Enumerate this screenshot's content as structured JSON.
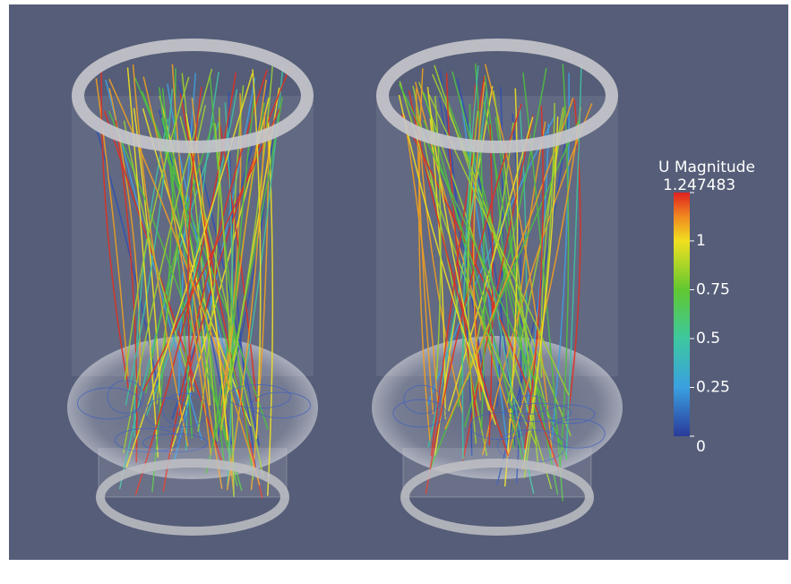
{
  "colorbar": {
    "title": "U Magnitude",
    "range": [
      0,
      1.247483
    ],
    "ticks": [
      0,
      0.25,
      0.5,
      0.75,
      1,
      1.247483
    ]
  }
}
